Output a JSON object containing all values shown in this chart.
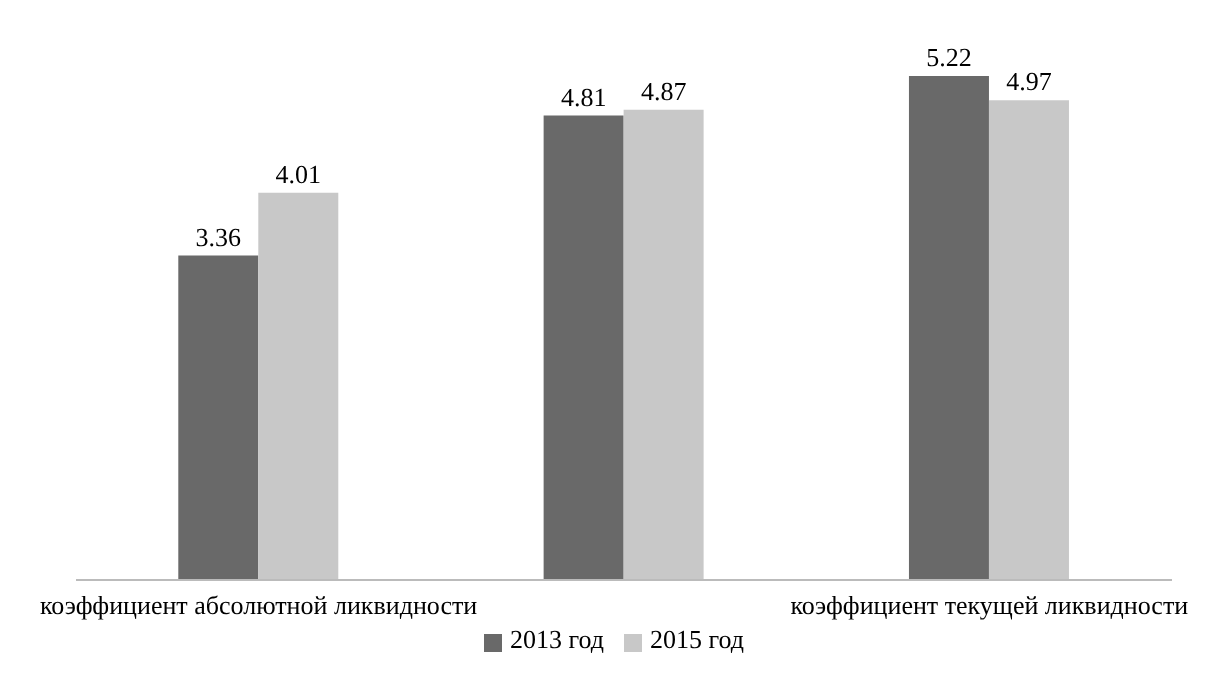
{
  "chart_data": {
    "type": "bar",
    "categories": [
      "коэффициент абсолютной ликвидности",
      null,
      "коэффициент текущей ликвидности"
    ],
    "series": [
      {
        "name": "2013 год",
        "color": "#696969",
        "values": [
          3.36,
          4.81,
          5.22
        ]
      },
      {
        "name": "2015 год",
        "color": "#c8c8c8",
        "values": [
          4.01,
          4.87,
          4.97
        ]
      }
    ],
    "data_labels": true,
    "legend": "bottom"
  }
}
